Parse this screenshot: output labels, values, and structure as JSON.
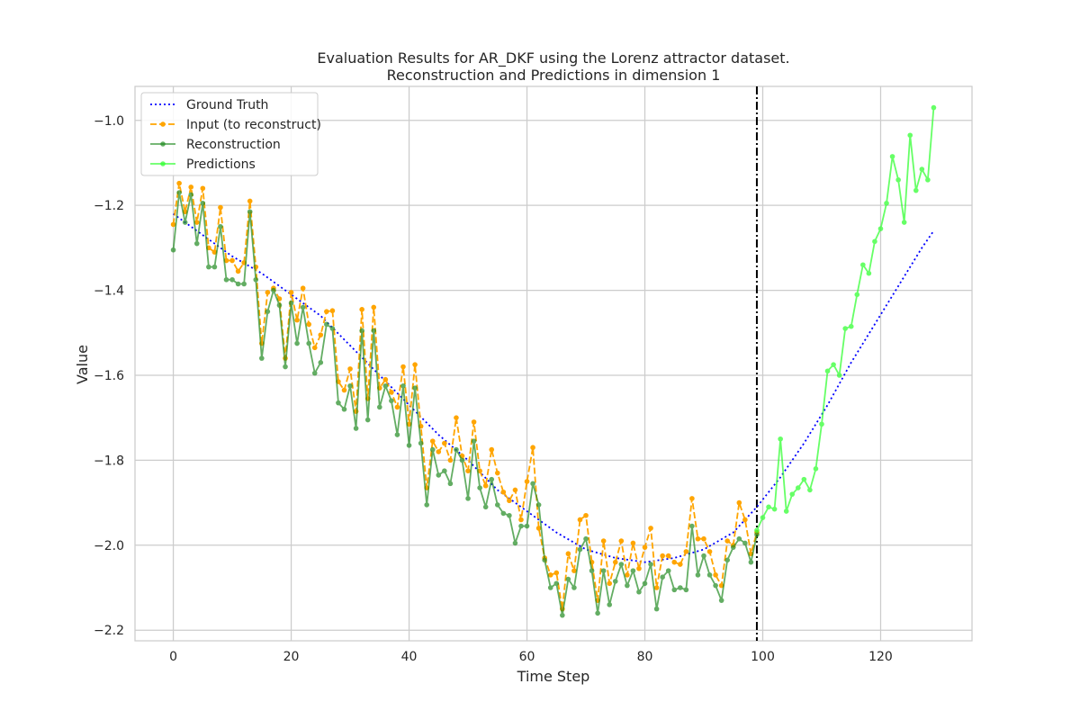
{
  "chart_data": {
    "type": "line",
    "title": "Evaluation Results for AR_DKF using the Lorenz attractor dataset.",
    "subtitle": "Reconstruction and Predictions in dimension 1",
    "xlabel": "Time Step",
    "ylabel": "Value",
    "xlim": [
      -6.5,
      135.5
    ],
    "ylim": [
      -2.225,
      -0.92
    ],
    "xticks": [
      0,
      20,
      40,
      60,
      80,
      100,
      120
    ],
    "yticks": [
      -2.2,
      -2.0,
      -1.8,
      -1.6,
      -1.4,
      -1.2,
      -1.0
    ],
    "grid": true,
    "legend_position": "top-left",
    "split_line_x": 99,
    "colors": {
      "ground_truth": "#0000ff",
      "input": "#ffa500",
      "reconstruction": "#228b22",
      "predictions": "#33ff33",
      "split": "#000000",
      "grid": "#cccccc",
      "spine": "#cccccc"
    },
    "series": [
      {
        "name": "Ground Truth",
        "style": "dotted",
        "x": [
          0,
          5,
          10,
          15,
          20,
          25,
          30,
          35,
          40,
          45,
          50,
          55,
          60,
          65,
          70,
          75,
          80,
          85,
          90,
          95,
          99,
          103,
          107,
          111,
          115,
          119,
          123,
          127,
          129
        ],
        "values": [
          -1.22,
          -1.27,
          -1.32,
          -1.36,
          -1.41,
          -1.46,
          -1.53,
          -1.6,
          -1.67,
          -1.74,
          -1.8,
          -1.87,
          -1.92,
          -1.97,
          -2.01,
          -2.03,
          -2.04,
          -2.03,
          -2.01,
          -1.97,
          -1.91,
          -1.84,
          -1.76,
          -1.67,
          -1.57,
          -1.48,
          -1.39,
          -1.3,
          -1.26
        ]
      },
      {
        "name": "Input (to reconstruct)",
        "style": "dashed",
        "x": [
          0,
          1,
          2,
          3,
          4,
          5,
          6,
          7,
          8,
          9,
          10,
          11,
          12,
          13,
          14,
          15,
          16,
          17,
          18,
          19,
          20,
          21,
          22,
          23,
          24,
          25,
          26,
          27,
          28,
          29,
          30,
          31,
          32,
          33,
          34,
          35,
          36,
          37,
          38,
          39,
          40,
          41,
          42,
          43,
          44,
          45,
          46,
          47,
          48,
          49,
          50,
          51,
          52,
          53,
          54,
          55,
          56,
          57,
          58,
          59,
          60,
          61,
          62,
          63,
          64,
          65,
          66,
          67,
          68,
          69,
          70,
          71,
          72,
          73,
          74,
          75,
          76,
          77,
          78,
          79,
          80,
          81,
          82,
          83,
          84,
          85,
          86,
          87,
          88,
          89,
          90,
          91,
          92,
          93,
          94,
          95,
          96,
          97,
          98,
          99
        ],
        "values": [
          -1.245,
          -1.148,
          -1.215,
          -1.157,
          -1.24,
          -1.16,
          -1.3,
          -1.31,
          -1.205,
          -1.33,
          -1.33,
          -1.355,
          -1.335,
          -1.19,
          -1.345,
          -1.525,
          -1.405,
          -1.395,
          -1.42,
          -1.56,
          -1.405,
          -1.47,
          -1.395,
          -1.48,
          -1.535,
          -1.505,
          -1.45,
          -1.448,
          -1.615,
          -1.635,
          -1.585,
          -1.685,
          -1.445,
          -1.655,
          -1.44,
          -1.63,
          -1.61,
          -1.64,
          -1.675,
          -1.58,
          -1.715,
          -1.575,
          -1.72,
          -1.865,
          -1.755,
          -1.78,
          -1.76,
          -1.8,
          -1.7,
          -1.79,
          -1.825,
          -1.71,
          -1.825,
          -1.86,
          -1.775,
          -1.83,
          -1.875,
          -1.895,
          -1.87,
          -1.94,
          -1.85,
          -1.77,
          -1.96,
          -2.03,
          -2.07,
          -2.065,
          -2.15,
          -2.02,
          -2.06,
          -1.94,
          -1.93,
          -2.04,
          -2.13,
          -1.99,
          -2.09,
          -2.04,
          -1.99,
          -2.07,
          -1.995,
          -2.055,
          -2.005,
          -1.96,
          -2.1,
          -2.025,
          -2.025,
          -2.04,
          -2.045,
          -2.015,
          -1.89,
          -1.985,
          -1.985,
          -2.015,
          -2.07,
          -2.095,
          -1.99,
          -2.0,
          -1.9,
          -1.94,
          -2.02,
          -1.97
        ]
      },
      {
        "name": "Reconstruction",
        "style": "solid",
        "x": [
          0,
          1,
          2,
          3,
          4,
          5,
          6,
          7,
          8,
          9,
          10,
          11,
          12,
          13,
          14,
          15,
          16,
          17,
          18,
          19,
          20,
          21,
          22,
          23,
          24,
          25,
          26,
          27,
          28,
          29,
          30,
          31,
          32,
          33,
          34,
          35,
          36,
          37,
          38,
          39,
          40,
          41,
          42,
          43,
          44,
          45,
          46,
          47,
          48,
          49,
          50,
          51,
          52,
          53,
          54,
          55,
          56,
          57,
          58,
          59,
          60,
          61,
          62,
          63,
          64,
          65,
          66,
          67,
          68,
          69,
          70,
          71,
          72,
          73,
          74,
          75,
          76,
          77,
          78,
          79,
          80,
          81,
          82,
          83,
          84,
          85,
          86,
          87,
          88,
          89,
          90,
          91,
          92,
          93,
          94,
          95,
          96,
          97,
          98,
          99
        ],
        "values": [
          -1.305,
          -1.17,
          -1.24,
          -1.175,
          -1.29,
          -1.195,
          -1.345,
          -1.345,
          -1.25,
          -1.375,
          -1.375,
          -1.385,
          -1.385,
          -1.215,
          -1.375,
          -1.56,
          -1.45,
          -1.4,
          -1.435,
          -1.58,
          -1.43,
          -1.525,
          -1.44,
          -1.525,
          -1.595,
          -1.57,
          -1.48,
          -1.49,
          -1.665,
          -1.68,
          -1.625,
          -1.725,
          -1.495,
          -1.705,
          -1.495,
          -1.675,
          -1.625,
          -1.66,
          -1.74,
          -1.625,
          -1.765,
          -1.63,
          -1.76,
          -1.905,
          -1.775,
          -1.835,
          -1.825,
          -1.855,
          -1.775,
          -1.8,
          -1.89,
          -1.755,
          -1.865,
          -1.91,
          -1.845,
          -1.905,
          -1.925,
          -1.93,
          -1.995,
          -1.955,
          -1.955,
          -1.855,
          -1.905,
          -2.035,
          -2.1,
          -2.09,
          -2.165,
          -2.08,
          -2.1,
          -2.01,
          -1.985,
          -2.06,
          -2.16,
          -2.06,
          -2.14,
          -2.085,
          -2.045,
          -2.095,
          -2.06,
          -2.11,
          -2.09,
          -2.045,
          -2.15,
          -2.075,
          -2.06,
          -2.105,
          -2.1,
          -2.105,
          -1.955,
          -2.07,
          -2.025,
          -2.07,
          -2.095,
          -2.13,
          -2.035,
          -2.005,
          -1.985,
          -1.995,
          -2.04,
          -1.975
        ]
      },
      {
        "name": "Predictions",
        "style": "solid",
        "x": [
          99,
          100,
          101,
          102,
          103,
          104,
          105,
          106,
          107,
          108,
          109,
          110,
          111,
          112,
          113,
          114,
          115,
          116,
          117,
          118,
          119,
          120,
          121,
          122,
          123,
          124,
          125,
          126,
          127,
          128,
          129
        ],
        "values": [
          -1.965,
          -1.935,
          -1.91,
          -1.915,
          -1.75,
          -1.92,
          -1.88,
          -1.865,
          -1.845,
          -1.87,
          -1.82,
          -1.715,
          -1.59,
          -1.575,
          -1.6,
          -1.49,
          -1.485,
          -1.41,
          -1.34,
          -1.36,
          -1.285,
          -1.255,
          -1.195,
          -1.085,
          -1.14,
          -1.24,
          -1.035,
          -1.165,
          -1.115,
          -1.14,
          -0.97
        ]
      }
    ]
  }
}
